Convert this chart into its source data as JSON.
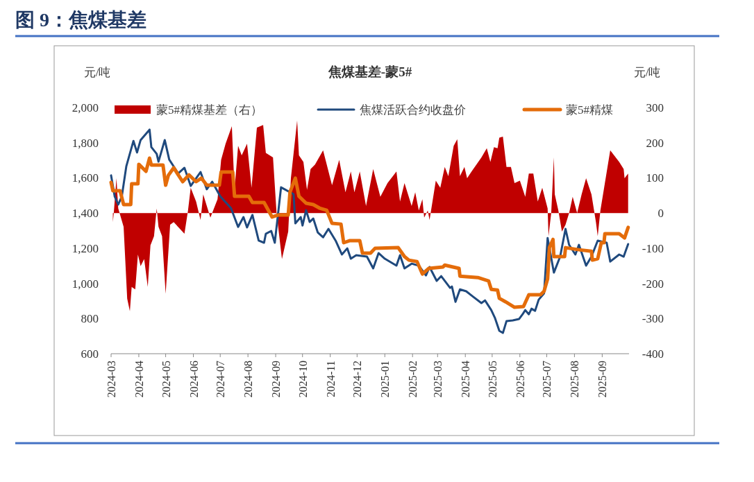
{
  "chart_data": {
    "type": "line",
    "title": "图 9：焦煤基差",
    "subtitle": "焦煤基差-蒙5#",
    "ylabel": "元/吨",
    "y2label": "元/吨",
    "xlim": [
      "2024-03-01",
      "2025-10-01"
    ],
    "xticks": [
      "2024-03",
      "2024-04",
      "2024-05",
      "2024-06",
      "2024-07",
      "2024-08",
      "2024-09",
      "2024-10",
      "2024-11",
      "2024-12",
      "2025-01",
      "2025-02",
      "2025-03",
      "2025-04",
      "2025-05",
      "2025-06",
      "2025-07",
      "2025-08",
      "2025-09"
    ],
    "ylim": [
      600,
      2000
    ],
    "yticks": [
      {
        "value": 600,
        "label": "600"
      },
      {
        "value": 800,
        "label": "800"
      },
      {
        "value": 1000,
        "label": "1,000"
      },
      {
        "value": 1200,
        "label": "1,200"
      },
      {
        "value": 1400,
        "label": "1,400"
      },
      {
        "value": 1600,
        "label": "1,600"
      },
      {
        "value": 1800,
        "label": "1,800"
      },
      {
        "value": 2000,
        "label": "2,000"
      }
    ],
    "y2lim": [
      -400,
      300
    ],
    "y2ticks": [
      -400,
      -300,
      -200,
      -100,
      0,
      100,
      200,
      300
    ],
    "grid": false,
    "legend": "top",
    "series": [
      {
        "name": "蒙5#精煤基差（右）",
        "type": "area",
        "axis": "y2",
        "color": "#c00000",
        "x": [
          "2024-03-03",
          "2024-03-04",
          "2024-03-07",
          "2024-03-09",
          "2024-03-15",
          "2024-03-19",
          "2024-03-22",
          "2024-03-24",
          "2024-03-28",
          "2024-03-31",
          "2024-04-03",
          "2024-04-07",
          "2024-04-11",
          "2024-04-14",
          "2024-04-18",
          "2024-04-21",
          "2024-04-23",
          "2024-04-27",
          "2024-05-01",
          "2024-05-06",
          "2024-05-10",
          "2024-05-22",
          "2024-05-26",
          "2024-05-29",
          "2024-06-04",
          "2024-06-09",
          "2024-06-12",
          "2024-06-20",
          "2024-06-28",
          "2024-07-02",
          "2024-07-07",
          "2024-07-14",
          "2024-07-17",
          "2024-07-21",
          "2024-07-25",
          "2024-07-31",
          "2024-08-05",
          "2024-08-11",
          "2024-08-18",
          "2024-08-21",
          "2024-08-29",
          "2024-09-02",
          "2024-09-08",
          "2024-09-15",
          "2024-09-18",
          "2024-09-25",
          "2024-09-27",
          "2024-10-02",
          "2024-10-06",
          "2024-10-10",
          "2024-10-15",
          "2024-10-24",
          "2024-11-03",
          "2024-11-11",
          "2024-11-18",
          "2024-11-24",
          "2024-11-28",
          "2024-12-04",
          "2024-12-11",
          "2024-12-19",
          "2024-12-27",
          "2025-01-04",
          "2025-01-14",
          "2025-01-18",
          "2025-01-23",
          "2025-01-31",
          "2025-02-04",
          "2025-02-08",
          "2025-02-12",
          "2025-02-14",
          "2025-02-18",
          "2025-02-20",
          "2025-02-27",
          "2025-03-04",
          "2025-03-09",
          "2025-03-13",
          "2025-03-19",
          "2025-03-23",
          "2025-03-26",
          "2025-03-31",
          "2025-04-03",
          "2025-04-08",
          "2025-04-19",
          "2025-04-25",
          "2025-04-29",
          "2025-05-03",
          "2025-05-07",
          "2025-05-09",
          "2025-05-13",
          "2025-05-17",
          "2025-05-22",
          "2025-05-26",
          "2025-06-01",
          "2025-06-07",
          "2025-06-11",
          "2025-06-16",
          "2025-06-21",
          "2025-06-26",
          "2025-07-02",
          "2025-07-03",
          "2025-07-06",
          "2025-07-09",
          "2025-07-10",
          "2025-07-14",
          "2025-07-18",
          "2025-07-22",
          "2025-07-26",
          "2025-07-30",
          "2025-08-04",
          "2025-08-09",
          "2025-08-14",
          "2025-08-20",
          "2025-08-25",
          "2025-08-27",
          "2025-08-30",
          "2025-09-04",
          "2025-09-10",
          "2025-09-20",
          "2025-09-25",
          "2025-09-26",
          "2025-09-30"
        ],
        "values": [
          -26,
          0,
          99,
          13,
          -39,
          -243,
          -279,
          -210,
          -217,
          -118,
          -151,
          -131,
          -210,
          -92,
          -66,
          13,
          -39,
          -66,
          -230,
          -33,
          -26,
          -59,
          7,
          72,
          33,
          -20,
          53,
          -13,
          39,
          151,
          197,
          247,
          66,
          191,
          164,
          197,
          72,
          243,
          250,
          171,
          158,
          0,
          -131,
          -53,
          99,
          263,
          164,
          145,
          66,
          125,
          138,
          178,
          79,
          151,
          59,
          118,
          59,
          118,
          20,
          125,
          46,
          85,
          118,
          33,
          85,
          20,
          59,
          7,
          39,
          -13,
          7,
          -20,
          92,
          72,
          131,
          105,
          191,
          210,
          105,
          131,
          99,
          118,
          158,
          184,
          145,
          187,
          184,
          214,
          217,
          131,
          131,
          85,
          92,
          46,
          112,
          112,
          33,
          72,
          13,
          -66,
          0,
          158,
          53,
          7,
          -53,
          -33,
          0,
          46,
          0,
          53,
          99,
          53,
          -26,
          -66,
          7,
          85,
          178,
          145,
          125,
          99,
          112
        ]
      },
      {
        "name": "焦煤活跃合约收盘价",
        "color": "#1f497d",
        "x": [
          "2024-03-01",
          "2024-03-05",
          "2024-03-09",
          "2024-03-13",
          "2024-03-18",
          "2024-03-26",
          "2024-03-30",
          "2024-04-03",
          "2024-04-13",
          "2024-04-15",
          "2024-04-21",
          "2024-04-23",
          "2024-04-30",
          "2024-05-05",
          "2024-05-10",
          "2024-05-15",
          "2024-05-22",
          "2024-05-29",
          "2024-06-09",
          "2024-06-16",
          "2024-06-22",
          "2024-07-01",
          "2024-07-13",
          "2024-07-21",
          "2024-07-27",
          "2024-07-31",
          "2024-08-06",
          "2024-08-13",
          "2024-08-19",
          "2024-08-21",
          "2024-08-27",
          "2024-08-31",
          "2024-09-07",
          "2024-09-21",
          "2024-09-23",
          "2024-09-29",
          "2024-10-01",
          "2024-10-05",
          "2024-10-09",
          "2024-10-13",
          "2024-10-18",
          "2024-10-24",
          "2024-10-30",
          "2024-11-07",
          "2024-11-14",
          "2024-11-20",
          "2024-11-24",
          "2024-11-30",
          "2024-12-12",
          "2024-12-19",
          "2024-12-25",
          "2025-01-01",
          "2025-01-14",
          "2025-01-18",
          "2025-01-23",
          "2025-01-31",
          "2025-02-08",
          "2025-02-16",
          "2025-02-20",
          "2025-02-28",
          "2025-03-05",
          "2025-03-15",
          "2025-03-17",
          "2025-03-21",
          "2025-03-26",
          "2025-04-02",
          "2025-04-09",
          "2025-04-19",
          "2025-04-23",
          "2025-04-30",
          "2025-05-04",
          "2025-05-09",
          "2025-05-13",
          "2025-05-17",
          "2025-05-24",
          "2025-05-31",
          "2025-06-04",
          "2025-06-07",
          "2025-06-11",
          "2025-06-14",
          "2025-06-18",
          "2025-06-22",
          "2025-06-28",
          "2025-07-02",
          "2025-07-09",
          "2025-07-16",
          "2025-07-22",
          "2025-07-26",
          "2025-08-02",
          "2025-08-06",
          "2025-08-14",
          "2025-08-20",
          "2025-08-27",
          "2025-09-06",
          "2025-09-10",
          "2025-09-20",
          "2025-09-25",
          "2025-09-30"
        ],
        "values": [
          1614,
          1495,
          1448,
          1495,
          1665,
          1810,
          1744,
          1815,
          1874,
          1775,
          1736,
          1692,
          1815,
          1704,
          1665,
          1625,
          1657,
          1554,
          1633,
          1535,
          1578,
          1495,
          1428,
          1321,
          1377,
          1318,
          1389,
          1243,
          1231,
          1282,
          1298,
          1231,
          1546,
          1507,
          1341,
          1377,
          1329,
          1416,
          1349,
          1369,
          1290,
          1262,
          1310,
          1243,
          1164,
          1199,
          1140,
          1160,
          1152,
          1085,
          1172,
          1140,
          1101,
          1160,
          1085,
          1112,
          1101,
          1045,
          1093,
          1014,
          1041,
          974,
          982,
          895,
          966,
          955,
          927,
          888,
          903,
          848,
          805,
          730,
          718,
          785,
          789,
          797,
          824,
          848,
          824,
          856,
          844,
          907,
          943,
          1258,
          1061,
          1152,
          1310,
          1219,
          1164,
          1219,
          1101,
          1152,
          1243,
          1231,
          1124,
          1164,
          1152,
          1223
        ]
      },
      {
        "name": "蒙5#精煤",
        "color": "#e46c0a",
        "x": [
          "2024-03-01",
          "2024-03-03",
          "2024-03-11",
          "2024-03-15",
          "2024-03-23",
          "2024-03-24",
          "2024-03-31",
          "2024-04-01",
          "2024-04-09",
          "2024-04-13",
          "2024-04-15",
          "2024-04-28",
          "2024-05-01",
          "2024-05-04",
          "2024-05-10",
          "2024-05-20",
          "2024-05-27",
          "2024-06-04",
          "2024-06-10",
          "2024-06-16",
          "2024-06-30",
          "2024-07-02",
          "2024-07-15",
          "2024-07-17",
          "2024-08-02",
          "2024-08-06",
          "2024-08-19",
          "2024-08-28",
          "2024-09-04",
          "2024-09-15",
          "2024-09-17",
          "2024-09-23",
          "2024-09-27",
          "2024-10-05",
          "2024-10-13",
          "2024-10-20",
          "2024-10-28",
          "2024-11-03",
          "2024-11-13",
          "2024-11-16",
          "2024-11-23",
          "2024-12-04",
          "2024-12-07",
          "2024-12-16",
          "2024-12-21",
          "2025-01-16",
          "2025-01-23",
          "2025-01-28",
          "2025-02-06",
          "2025-02-12",
          "2025-02-19",
          "2025-03-07",
          "2025-03-09",
          "2025-03-25",
          "2025-03-26",
          "2025-04-15",
          "2025-04-27",
          "2025-04-30",
          "2025-05-07",
          "2025-05-09",
          "2025-05-16",
          "2025-05-26",
          "2025-06-05",
          "2025-06-11",
          "2025-06-24",
          "2025-06-28",
          "2025-07-02",
          "2025-07-04",
          "2025-07-08",
          "2025-07-09",
          "2025-07-21",
          "2025-07-22",
          "2025-08-06",
          "2025-08-20",
          "2025-08-21",
          "2025-08-27",
          "2025-08-31",
          "2025-09-03",
          "2025-09-04",
          "2025-09-20",
          "2025-09-26",
          "2025-09-30"
        ],
        "values": [
          1574,
          1527,
          1527,
          1448,
          1448,
          1566,
          1566,
          1677,
          1637,
          1712,
          1673,
          1673,
          1558,
          1614,
          1657,
          1578,
          1617,
          1578,
          1598,
          1558,
          1558,
          1633,
          1633,
          1495,
          1495,
          1460,
          1460,
          1377,
          1389,
          1389,
          1519,
          1598,
          1495,
          1456,
          1448,
          1428,
          1416,
          1341,
          1337,
          1231,
          1243,
          1243,
          1172,
          1172,
          1199,
          1203,
          1152,
          1132,
          1124,
          1053,
          1085,
          1093,
          1104,
          1085,
          1041,
          1033,
          1014,
          966,
          962,
          915,
          895,
          864,
          868,
          935,
          935,
          955,
          1026,
          1203,
          1250,
          1152,
          1152,
          1203,
          1191,
          1183,
          1132,
          1140,
          1231,
          1231,
          1282,
          1282,
          1258,
          1318
        ]
      }
    ]
  }
}
